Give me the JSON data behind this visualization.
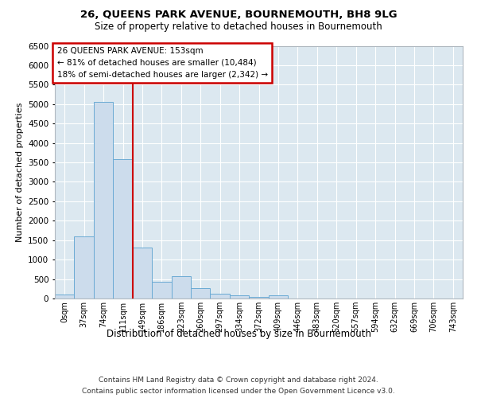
{
  "title": "26, QUEENS PARK AVENUE, BOURNEMOUTH, BH8 9LG",
  "subtitle": "Size of property relative to detached houses in Bournemouth",
  "xlabel": "Distribution of detached houses by size in Bournemouth",
  "ylabel": "Number of detached properties",
  "footnote1": "Contains HM Land Registry data © Crown copyright and database right 2024.",
  "footnote2": "Contains public sector information licensed under the Open Government Licence v3.0.",
  "annotation_title": "26 QUEENS PARK AVENUE: 153sqm",
  "annotation_line2": "← 81% of detached houses are smaller (10,484)",
  "annotation_line3": "18% of semi-detached houses are larger (2,342) →",
  "bar_color": "#ccdcec",
  "bar_edge_color": "#6aaad4",
  "vline_color": "#cc0000",
  "annotation_box_color": "#ffffff",
  "annotation_box_edge": "#cc0000",
  "bg_color": "#ffffff",
  "plot_bg_color": "#dce8f0",
  "grid_color": "#ffffff",
  "categories": [
    "0sqm",
    "37sqm",
    "74sqm",
    "111sqm",
    "149sqm",
    "186sqm",
    "223sqm",
    "260sqm",
    "297sqm",
    "334sqm",
    "372sqm",
    "409sqm",
    "446sqm",
    "483sqm",
    "520sqm",
    "557sqm",
    "594sqm",
    "632sqm",
    "669sqm",
    "706sqm",
    "743sqm"
  ],
  "values": [
    100,
    1600,
    5050,
    3580,
    1320,
    420,
    580,
    270,
    130,
    80,
    50,
    80,
    5,
    0,
    0,
    0,
    0,
    0,
    0,
    0,
    0
  ],
  "ylim": [
    0,
    6500
  ],
  "yticks": [
    0,
    500,
    1000,
    1500,
    2000,
    2500,
    3000,
    3500,
    4000,
    4500,
    5000,
    5500,
    6000,
    6500
  ],
  "vline_index": 3.5
}
